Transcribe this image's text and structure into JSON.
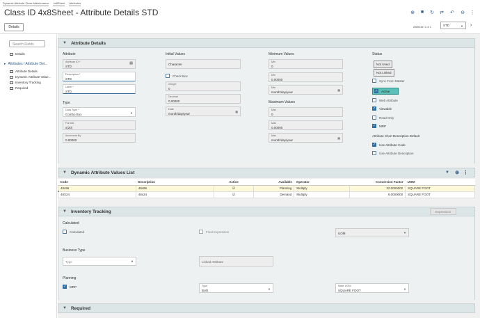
{
  "breadcrumb": [
    "Dynamic Attribute Class Maintenance",
    "4x8Sheet",
    "Attributes"
  ],
  "title": "Class ID 4x8Sheet - Attribute Details STD",
  "tabs": {
    "details": "Details"
  },
  "pagination": {
    "text": "Attribute 1 of 1",
    "value": "STD"
  },
  "search": {
    "placeholder": "Search Fields"
  },
  "nav": {
    "details": "Details",
    "group": "Attributes / Attribute Det...",
    "items": [
      "Attribute Details",
      "Dynamic Attribute Value...",
      "Inventory Tracking",
      "Required"
    ]
  },
  "attr": {
    "header": "Attribute Details",
    "col_attribute": "Attribute",
    "col_initial": "Initial Values",
    "col_min": "Minimum Values",
    "col_max": "Maximum Values",
    "col_status": "Status",
    "attribute_id_label": "Attribute ID *",
    "attribute_id": "STD",
    "description_label": "Description *",
    "description": "STD",
    "label_label": "Label *",
    "label": "STD",
    "type_header": "Type",
    "data_type_label": "Data Type *",
    "data_type": "Combo Box",
    "format_label": "Format",
    "format": "x(20)",
    "increment_label": "Increment By",
    "increment": "0.00000",
    "initial_character": "Character",
    "check_box": "Check Box",
    "integer_label": "Integer",
    "integer": "0",
    "decimal_label": "Decimal",
    "decimal": "0.00000",
    "date_label": "Date",
    "date": "month/day/year",
    "min_label": "Min",
    "min_int": "0",
    "min_dec": "0.00000",
    "min_date": "month/day/year",
    "max_label": "Max",
    "max_int": "0",
    "max_dec": "0.00000",
    "max_date": "month/day/year",
    "not_used": "Not Used",
    "not_linked": "Not Linked",
    "sync": "Sync From Master",
    "active": "Active",
    "web": "Web Attribute",
    "viewable": "Viewable",
    "readonly": "Read Only",
    "mrp": "MRP",
    "short_desc": "Attribute Short Description Default",
    "use_code": "Use Attribute Code",
    "use_desc": "Use Attribute Description"
  },
  "dav": {
    "header": "Dynamic Attribute Values List",
    "columns": [
      "Code",
      "Description",
      "Active",
      "Available",
      "Operator",
      "Conversion Factor",
      "UOM"
    ],
    "rows": [
      {
        "code": "48x96",
        "desc": "48x96",
        "avail": "Planning",
        "op": "Multiply",
        "factor": "32.0000000",
        "uom": "SQUARE FOOT"
      },
      {
        "code": "48X24",
        "desc": "48x24",
        "avail": "Demand",
        "op": "Multiply",
        "factor": "8.0000000",
        "uom": "SQUARE FOOT"
      }
    ]
  },
  "inv": {
    "header": "Inventory Tracking",
    "expression_btn": "Expression",
    "calculated_header": "Calculated",
    "calculated": "Calculated",
    "final_expr": "Final Expression",
    "uom": "UOM",
    "business_type": "Business Type",
    "type_ph": "Type",
    "linked": "Linked Attribute",
    "planning": "Planning",
    "mrp": "MRP",
    "type_label": "Type",
    "type_val": "Both",
    "base_uom_label": "Base UOM",
    "base_uom": "SQUARE FOOT"
  },
  "req": {
    "header": "Required"
  }
}
